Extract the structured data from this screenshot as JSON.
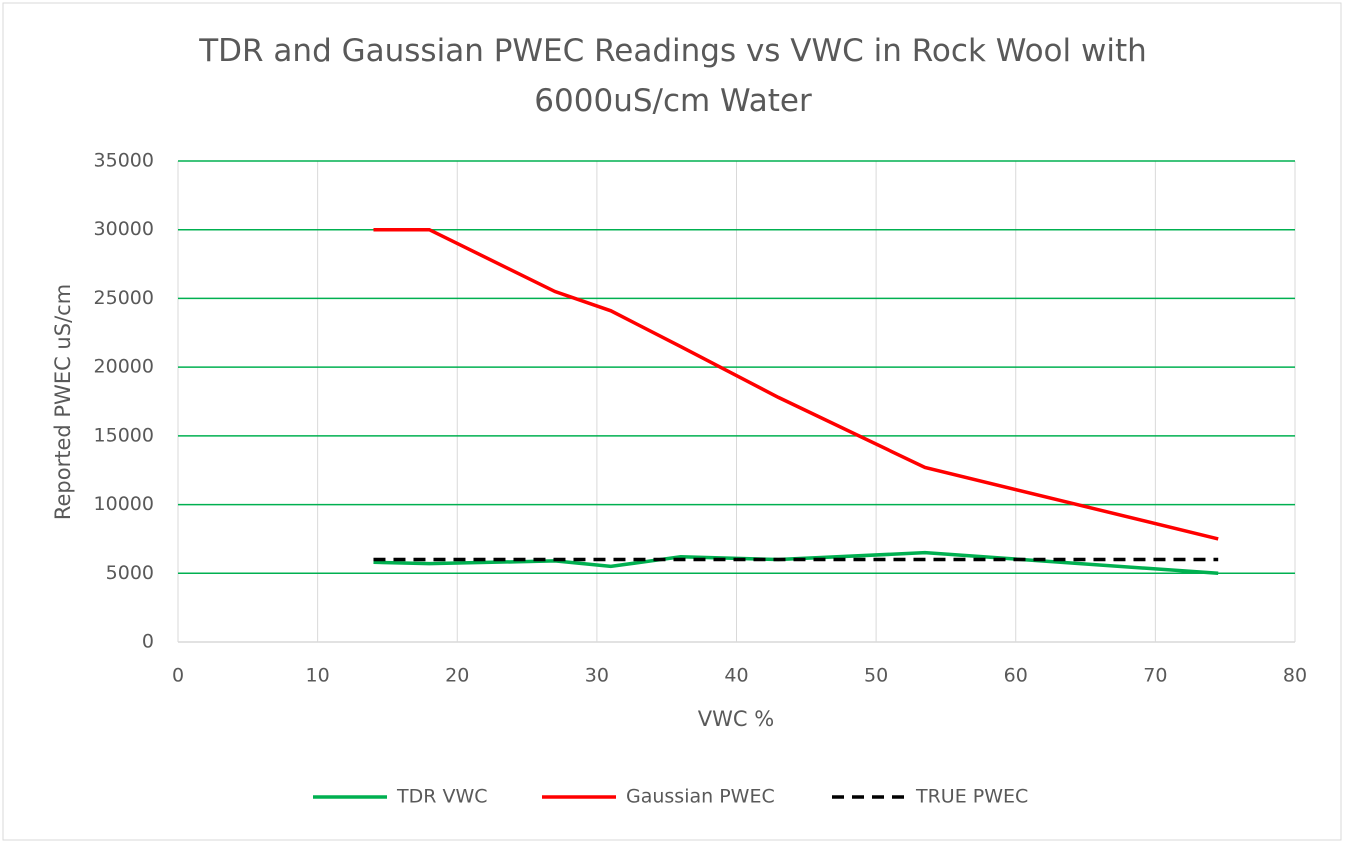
{
  "chart_data": {
    "type": "line",
    "title": "TDR and Gaussian PWEC Readings vs VWC in Rock Wool with 6000uS/cm Water",
    "x_label": "VWC %",
    "y_label": "Reported PWEC uS/cm",
    "xlim": [
      0,
      80
    ],
    "xticks": [
      0,
      10,
      20,
      30,
      40,
      50,
      60,
      70,
      80
    ],
    "ylim": [
      0,
      35000
    ],
    "yticks": [
      0,
      5000,
      10000,
      15000,
      20000,
      25000,
      30000,
      35000
    ],
    "grid": true,
    "legend": "bottom",
    "series": [
      {
        "name": "TDR VWC",
        "color": "#00b050",
        "dashed": false,
        "x": [
          14,
          18,
          27,
          31,
          36,
          43,
          53.5,
          74.5
        ],
        "values": [
          5800,
          5700,
          5900,
          5500,
          6200,
          6000,
          6500,
          5000
        ]
      },
      {
        "name": "Gaussian PWEC",
        "color": "#ff0000",
        "dashed": false,
        "x": [
          14,
          18,
          27,
          31,
          36,
          43,
          53.5,
          74.5
        ],
        "values": [
          30000,
          30000,
          25500,
          24100,
          21500,
          17800,
          12700,
          7500
        ]
      },
      {
        "name": "TRUE PWEC",
        "color": "#000000",
        "dashed": true,
        "x": [
          14,
          74.5
        ],
        "values": [
          6000,
          6000
        ]
      }
    ]
  }
}
